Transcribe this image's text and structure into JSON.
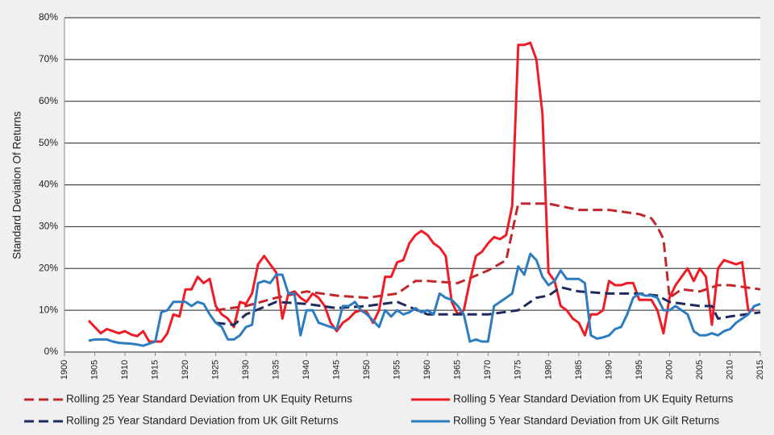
{
  "chart_data": {
    "type": "line",
    "y_label": "Standard Deviation Of Returns",
    "xlim": [
      1900,
      2015
    ],
    "xticks": [
      1900,
      1905,
      1910,
      1915,
      1920,
      1925,
      1930,
      1935,
      1940,
      1945,
      1950,
      1955,
      1960,
      1965,
      1970,
      1975,
      1980,
      1985,
      1990,
      1995,
      2000,
      2005,
      2010,
      2015
    ],
    "ylim": [
      0,
      80
    ],
    "yticks": [
      {
        "value": 0,
        "label": "0%"
      },
      {
        "value": 10,
        "label": "10%"
      },
      {
        "value": 20,
        "label": "20%"
      },
      {
        "value": 30,
        "label": "30%"
      },
      {
        "value": 40,
        "label": "40%"
      },
      {
        "value": 50,
        "label": "50%"
      },
      {
        "value": 60,
        "label": "60%"
      },
      {
        "value": 70,
        "label": "70%"
      },
      {
        "value": 80,
        "label": "80%"
      }
    ],
    "grid": true,
    "series": [
      {
        "name": "Rolling 25 Year Standard Deviation from UK Equity Returns",
        "color": "#c0282d",
        "dashed": true,
        "x": [
          1925,
          1930,
          1935,
          1940,
          1945,
          1950,
          1955,
          1958,
          1960,
          1965,
          1970,
          1973,
          1975,
          1980,
          1985,
          1990,
          1995,
          1997,
          1998,
          1999,
          2000,
          2002,
          2005,
          2008,
          2010,
          2015
        ],
        "values": [
          10,
          11,
          13,
          14.5,
          13.5,
          13,
          14,
          17,
          17,
          16.5,
          19.5,
          22,
          35.5,
          35.5,
          34,
          34,
          33,
          32,
          30,
          27,
          13,
          15,
          14.5,
          16,
          16,
          15
        ]
      },
      {
        "name": "Rolling 5 Year Standard Deviation from UK Equity Returns",
        "color": "#ee1c25",
        "dashed": false,
        "x": [
          1904,
          1905,
          1906,
          1907,
          1908,
          1909,
          1910,
          1911,
          1912,
          1913,
          1914,
          1915,
          1916,
          1917,
          1918,
          1919,
          1920,
          1921,
          1922,
          1923,
          1924,
          1925,
          1926,
          1927,
          1928,
          1929,
          1930,
          1931,
          1932,
          1933,
          1934,
          1935,
          1936,
          1937,
          1938,
          1939,
          1940,
          1941,
          1942,
          1943,
          1944,
          1945,
          1946,
          1947,
          1948,
          1949,
          1950,
          1951,
          1952,
          1953,
          1954,
          1955,
          1956,
          1957,
          1958,
          1959,
          1960,
          1961,
          1962,
          1963,
          1964,
          1965,
          1966,
          1967,
          1968,
          1969,
          1970,
          1971,
          1972,
          1973,
          1974,
          1975,
          1976,
          1977,
          1978,
          1979,
          1980,
          1981,
          1982,
          1983,
          1984,
          1985,
          1986,
          1987,
          1988,
          1989,
          1990,
          1991,
          1992,
          1993,
          1994,
          1995,
          1996,
          1997,
          1998,
          1999,
          2000,
          2001,
          2002,
          2003,
          2004,
          2005,
          2006,
          2007,
          2008,
          2009,
          2010,
          2011,
          2012,
          2013,
          2014
        ],
        "values": [
          7.5,
          6,
          4.5,
          5.5,
          5,
          4.5,
          5,
          4.2,
          3.8,
          5,
          2.5,
          2.5,
          2.5,
          4.5,
          9,
          8.5,
          15,
          15,
          18,
          16.5,
          17.5,
          11,
          9,
          8,
          6,
          12,
          11.5,
          14,
          21,
          23,
          21,
          19,
          8,
          14,
          14.5,
          13,
          12,
          14,
          13,
          11,
          7,
          5,
          7,
          8,
          9.5,
          10,
          9.5,
          7,
          10,
          18,
          18,
          21.5,
          22,
          26,
          28,
          29,
          28,
          26,
          25,
          23,
          12,
          9,
          10,
          17,
          23,
          24,
          26,
          27.5,
          27,
          28,
          35,
          73.5,
          73.5,
          74,
          70,
          57,
          19,
          17,
          11,
          10,
          8,
          7,
          4,
          9,
          9,
          10,
          17,
          16,
          16,
          16.5,
          16.5,
          12.5,
          12.5,
          12.5,
          10,
          4.5,
          13,
          16,
          18,
          20,
          17,
          20,
          18,
          6.5,
          20,
          22,
          21.5,
          21,
          21.5,
          10,
          10
        ]
      },
      {
        "name": "Rolling 25 Year Standard Deviation from UK Gilt Returns",
        "color": "#1f2a5c",
        "dashed": true,
        "x": [
          1925,
          1928,
          1930,
          1935,
          1940,
          1945,
          1950,
          1955,
          1960,
          1965,
          1970,
          1975,
          1978,
          1980,
          1982,
          1985,
          1990,
          1995,
          1998,
          2000,
          2005,
          2007,
          2008,
          2010,
          2015
        ],
        "values": [
          7,
          6.5,
          9,
          12,
          11.5,
          10.5,
          11,
          12,
          9,
          9,
          9,
          10,
          13,
          13.5,
          15.5,
          14.5,
          14,
          14,
          13.5,
          12,
          11,
          11,
          8,
          8.5,
          9.5
        ]
      },
      {
        "name": "Rolling 5 Year Standard Deviation from UK Gilt Returns",
        "color": "#2e7cc0",
        "dashed": false,
        "x": [
          1904,
          1905,
          1906,
          1907,
          1908,
          1909,
          1910,
          1911,
          1912,
          1913,
          1914,
          1915,
          1916,
          1917,
          1918,
          1919,
          1920,
          1921,
          1922,
          1923,
          1924,
          1925,
          1926,
          1927,
          1928,
          1929,
          1930,
          1931,
          1932,
          1933,
          1934,
          1935,
          1936,
          1937,
          1938,
          1939,
          1940,
          1941,
          1942,
          1943,
          1944,
          1945,
          1946,
          1947,
          1948,
          1949,
          1950,
          1951,
          1952,
          1953,
          1954,
          1955,
          1956,
          1957,
          1958,
          1959,
          1960,
          1961,
          1962,
          1963,
          1964,
          1965,
          1966,
          1967,
          1968,
          1969,
          1970,
          1971,
          1972,
          1973,
          1974,
          1975,
          1976,
          1977,
          1978,
          1979,
          1980,
          1981,
          1982,
          1983,
          1984,
          1985,
          1986,
          1987,
          1988,
          1989,
          1990,
          1991,
          1992,
          1993,
          1994,
          1995,
          1996,
          1997,
          1998,
          1999,
          2000,
          2001,
          2002,
          2003,
          2004,
          2005,
          2006,
          2007,
          2008,
          2009,
          2010,
          2011,
          2012,
          2013,
          2014,
          2015
        ],
        "values": [
          2.7,
          3,
          3,
          3,
          2.5,
          2.2,
          2.1,
          2,
          1.8,
          1.5,
          2,
          2.5,
          9.5,
          10,
          12,
          12,
          12,
          11,
          12,
          11.5,
          9,
          7,
          6,
          3,
          3,
          4,
          6,
          6.5,
          16.5,
          17,
          16.5,
          18.5,
          18.5,
          14,
          14,
          4,
          10,
          10,
          7,
          6.5,
          6,
          5.5,
          11,
          11,
          12,
          10,
          9,
          7.5,
          6,
          10,
          8.5,
          10,
          9,
          9.5,
          10.5,
          9.5,
          10,
          9,
          14,
          13,
          12.5,
          11,
          9,
          2.5,
          3,
          2.5,
          2.5,
          11,
          12,
          13,
          14,
          20.5,
          18.5,
          23.5,
          22,
          18,
          16,
          17,
          19.5,
          17.5,
          17.5,
          17.5,
          16.5,
          4,
          3.2,
          3.5,
          4,
          5.5,
          6,
          9,
          13,
          14,
          13.5,
          13.5,
          13,
          10,
          10,
          11,
          10,
          9,
          5,
          4,
          4,
          4.5,
          4,
          5,
          5.5,
          7,
          8,
          9,
          11,
          11.5
        ]
      }
    ]
  }
}
